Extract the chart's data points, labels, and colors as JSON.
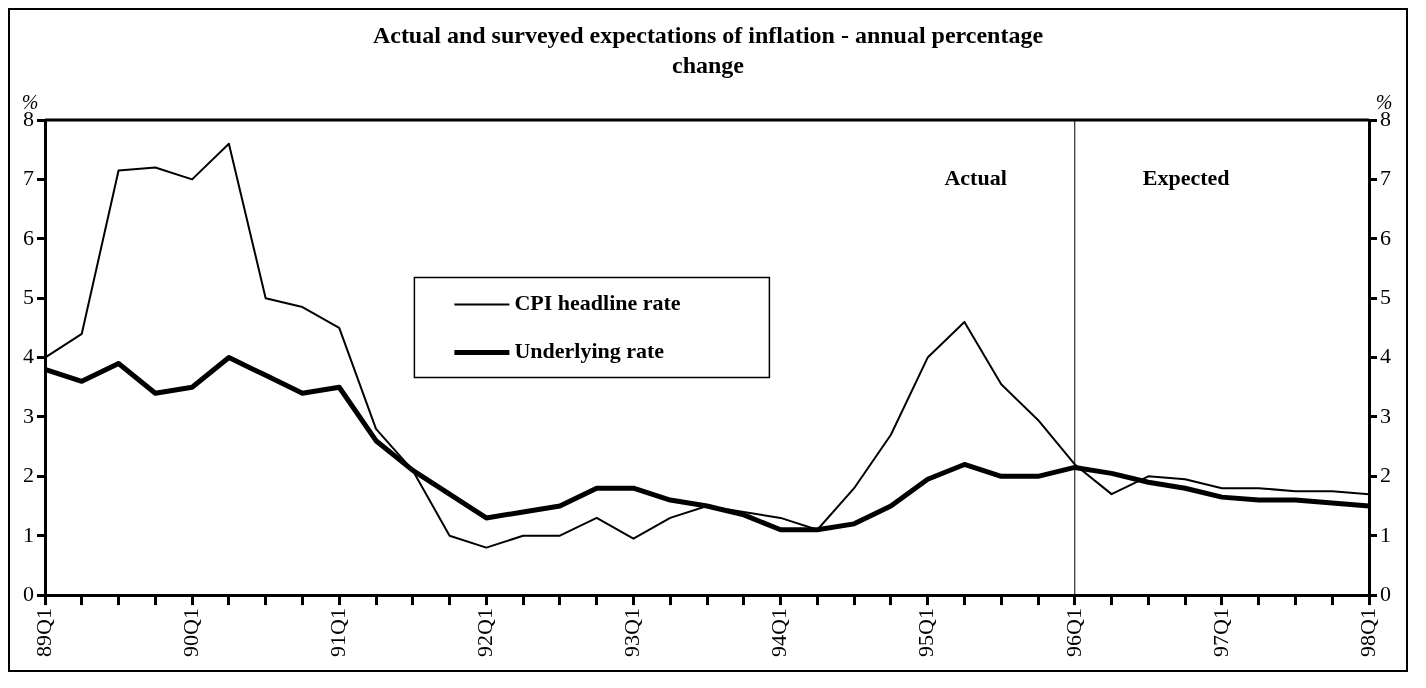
{
  "chart_data": {
    "type": "line",
    "title": "Actual and surveyed expectations of inflation - annual percentage change",
    "ylabel": "%",
    "y2label": "%",
    "categories": [
      "89Q1",
      null,
      null,
      null,
      "90Q1",
      null,
      null,
      null,
      "91Q1",
      null,
      null,
      null,
      "92Q1",
      null,
      null,
      null,
      "93Q1",
      null,
      null,
      null,
      "94Q1",
      null,
      null,
      null,
      "95Q1",
      null,
      null,
      null,
      "96Q1",
      null,
      null,
      null,
      "97Q1",
      null,
      null,
      null,
      "98Q1"
    ],
    "series": [
      {
        "name": "CPI headline rate",
        "color": "#000000",
        "values": [
          4.0,
          4.4,
          7.15,
          7.2,
          7.0,
          7.6,
          5.0,
          4.85,
          4.5,
          2.8,
          2.1,
          1.0,
          0.8,
          1.0,
          1.0,
          1.3,
          0.95,
          1.3,
          1.5,
          1.4,
          1.3,
          1.1,
          1.8,
          2.7,
          4.0,
          4.6,
          3.55,
          2.95,
          2.2,
          1.7,
          2.0,
          1.95,
          1.8,
          1.8,
          1.75,
          1.75,
          1.7
        ]
      },
      {
        "name": "Underlying rate",
        "color": "#000000",
        "values": [
          3.8,
          3.6,
          3.9,
          3.4,
          3.5,
          4.0,
          3.7,
          3.4,
          3.5,
          2.6,
          2.1,
          1.7,
          1.3,
          1.4,
          1.5,
          1.8,
          1.8,
          1.6,
          1.5,
          1.35,
          1.1,
          1.1,
          1.2,
          1.5,
          1.95,
          2.2,
          2.0,
          2.0,
          2.15,
          2.05,
          1.9,
          1.8,
          1.65,
          1.6,
          1.6,
          1.55,
          1.5
        ]
      }
    ],
    "ylim": [
      0,
      8
    ],
    "yticks": [
      0,
      1,
      2,
      3,
      4,
      5,
      6,
      7,
      8
    ],
    "y2lim": [
      0,
      8
    ],
    "y2ticks": [
      0,
      1,
      2,
      3,
      4,
      5,
      6,
      7,
      8
    ],
    "ref_lines": [
      {
        "axis": "x",
        "value": "96Q1",
        "color": "#000000"
      }
    ],
    "annotations": [
      "Actual",
      "Expected"
    ],
    "grid": false,
    "legend": "center",
    "marker": "none",
    "line_style": "solid"
  }
}
